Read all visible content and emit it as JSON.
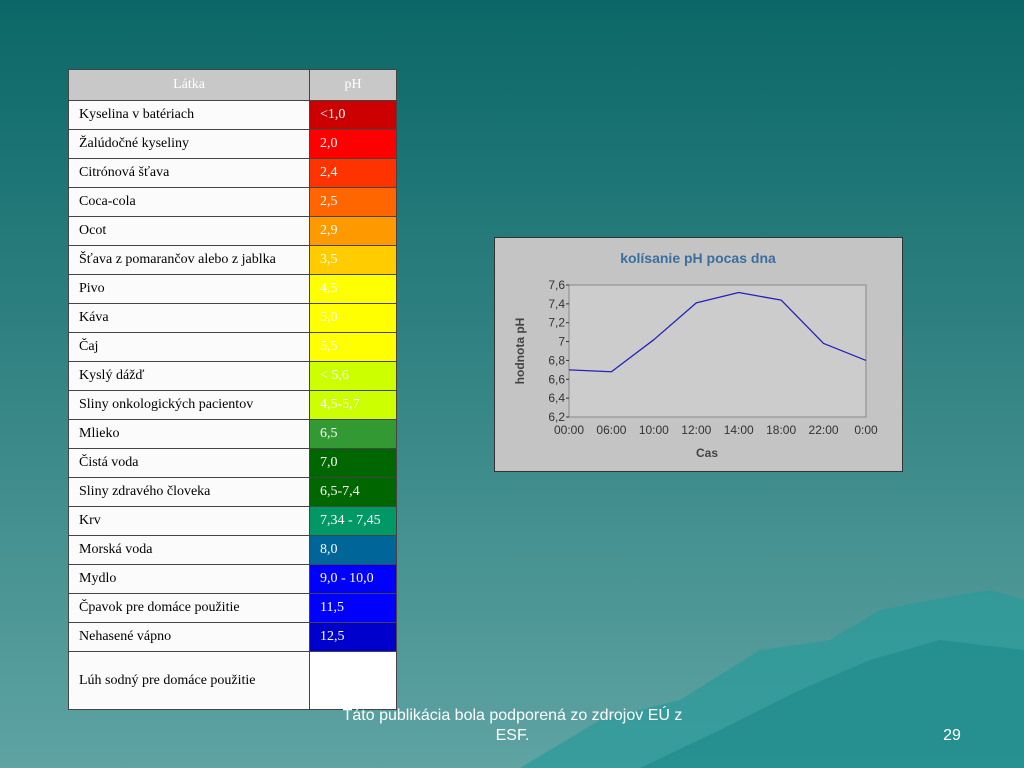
{
  "table": {
    "header": [
      "Látka",
      "pH"
    ],
    "header_color": "#c8c8c8",
    "rows": [
      {
        "name": "Kyselina v batériach",
        "ph": "<1,0",
        "color": "#cc0000"
      },
      {
        "name": "Žalúdočné kyseliny",
        "ph": "2,0",
        "color": "#ff0000"
      },
      {
        "name": "Citrónová šťava",
        "ph": "2,4",
        "color": "#ff3300"
      },
      {
        "name": "Coca-cola",
        "ph": "2,5",
        "color": "#ff6600"
      },
      {
        "name": "Ocot",
        "ph": "2,9",
        "color": "#ff9900"
      },
      {
        "name": "Šťava z pomarančov alebo z jablka",
        "ph": "3,5",
        "color": "#ffcc00"
      },
      {
        "name": "Pivo",
        "ph": "4,5",
        "color": "#ffff00"
      },
      {
        "name": "Káva",
        "ph": "5,0",
        "color": "#ffff00"
      },
      {
        "name": "Čaj",
        "ph": "5,5",
        "color": "#ffff00"
      },
      {
        "name": "Kyslý dážď",
        "ph": "< 5,6",
        "color": "#ccff00"
      },
      {
        "name": "Sliny onkologických pacientov",
        "ph": "4,5-5,7",
        "color": "#ccff00"
      },
      {
        "name": "Mlieko",
        "ph": "6,5",
        "color": "#339933"
      },
      {
        "name": "Čistá voda",
        "ph": "7,0",
        "color": "#006600"
      },
      {
        "name": "Sliny zdravého človeka",
        "ph": "6,5-7,4",
        "color": "#006600"
      },
      {
        "name": "Krv",
        "ph": "7,34 - 7,45",
        "color": "#009966"
      },
      {
        "name": "Morská voda",
        "ph": "8,0",
        "color": "#006699"
      },
      {
        "name": "Mydlo",
        "ph": "9,0 - 10,0",
        "color": "#0000ff"
      },
      {
        "name": "Čpavok pre domáce použitie",
        "ph": "11,5",
        "color": "#0000ff"
      },
      {
        "name": "Nehasené vápno",
        "ph": "12,5",
        "color": "#0000cc"
      },
      {
        "name": "Lúh sodný pre domáce použitie",
        "color": "#ffffff"
      }
    ]
  },
  "chart_data": {
    "type": "line",
    "title": "kolísanie pH pocas dna",
    "x_label": "Cas",
    "y_label": "hodnota pH",
    "categories": [
      "00:00",
      "06:00",
      "10:00",
      "12:00",
      "14:00",
      "18:00",
      "22:00",
      "0:00"
    ],
    "values": [
      6.7,
      6.68,
      7.02,
      7.41,
      7.52,
      7.44,
      6.98,
      6.8
    ],
    "color": "#2222bb",
    "ylim": [
      6.2,
      7.6
    ],
    "yticks": [
      {
        "value": 6.2,
        "label": "6,2"
      },
      {
        "value": 6.4,
        "label": "6,4"
      },
      {
        "value": 6.6,
        "label": "6,6"
      },
      {
        "value": 6.8,
        "label": "6,8"
      },
      7,
      {
        "value": 7.2,
        "label": "7,2"
      },
      {
        "value": 7.4,
        "label": "7,4"
      },
      {
        "value": 7.6,
        "label": "7,6"
      }
    ]
  },
  "footer": {
    "text": "Táto publikácia bola podporená zo zdrojov EÚ z ESF.",
    "page": "29"
  }
}
